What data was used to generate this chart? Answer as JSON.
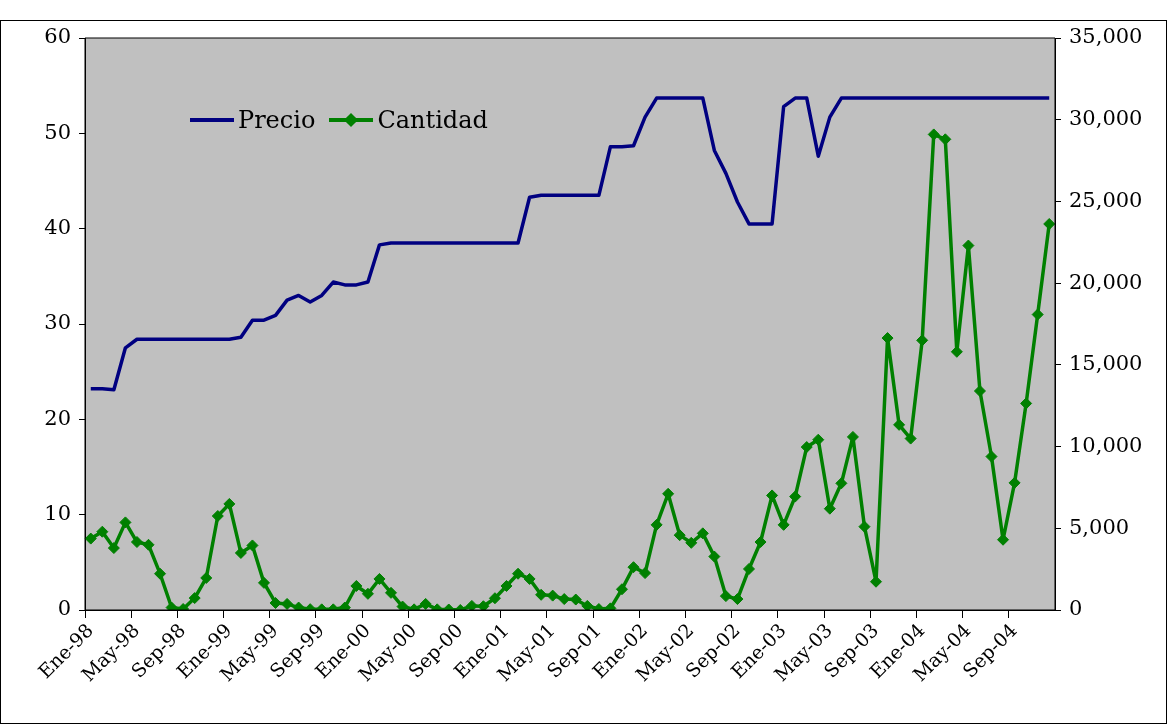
{
  "chart_data": {
    "type": "line",
    "categories": [
      "Ene-98",
      null,
      null,
      null,
      "May-98",
      null,
      null,
      null,
      "Sep-98",
      null,
      null,
      null,
      "Ene-99",
      null,
      null,
      null,
      "May-99",
      null,
      null,
      null,
      "Sep-99",
      null,
      null,
      null,
      "Ene-00",
      null,
      null,
      null,
      "May-00",
      null,
      null,
      null,
      "Sep-00",
      null,
      null,
      null,
      "Ene-01",
      null,
      null,
      null,
      "May-01",
      null,
      null,
      null,
      "Sep-01",
      null,
      null,
      null,
      "Ene-02",
      null,
      null,
      null,
      "May-02",
      null,
      null,
      null,
      "Sep-02",
      null,
      null,
      null,
      "Ene-03",
      null,
      null,
      null,
      "May-03",
      null,
      null,
      null,
      "Sep-03",
      null,
      null,
      null,
      "Ene-04",
      null,
      null,
      null,
      "May-04",
      null,
      null,
      null,
      "Sep-04",
      null,
      null,
      null
    ],
    "series": [
      {
        "name": "Precio",
        "color": "#000080",
        "marker": "none",
        "values": [
          23.2,
          23.2,
          23.1,
          27.5,
          28.4,
          28.4,
          28.4,
          28.4,
          28.4,
          28.4,
          28.4,
          28.4,
          28.4,
          28.6,
          30.4,
          30.4,
          30.9,
          32.5,
          33.0,
          32.3,
          33.0,
          34.4,
          34.1,
          34.1,
          34.4,
          38.3,
          38.5,
          38.5,
          38.5,
          38.5,
          38.5,
          38.5,
          38.5,
          38.5,
          38.5,
          38.5,
          38.5,
          38.5,
          43.3,
          43.5,
          43.5,
          43.5,
          43.5,
          43.5,
          43.5,
          48.6,
          48.6,
          48.7,
          51.7,
          53.7,
          53.7,
          53.7,
          53.7,
          53.7,
          48.2,
          45.8,
          42.8,
          40.5,
          40.5,
          40.5,
          52.8,
          53.7,
          53.7,
          47.6,
          51.7,
          53.7,
          53.7,
          53.7,
          53.7,
          53.7,
          53.7,
          53.7,
          53.7,
          53.7,
          53.7,
          53.7,
          53.7,
          53.7,
          53.7,
          53.7,
          53.7,
          53.7,
          53.7,
          53.7
        ]
      },
      {
        "name": "Cantidad",
        "color": "#008000",
        "marker": "diamond",
        "axis": "y2",
        "values": [
          4370,
          4790,
          3790,
          5360,
          4160,
          3990,
          2220,
          150,
          60,
          730,
          1960,
          5750,
          6490,
          3490,
          3950,
          1660,
          430,
          370,
          150,
          50,
          40,
          40,
          150,
          1470,
          990,
          1900,
          1050,
          210,
          40,
          370,
          40,
          30,
          0,
          250,
          230,
          720,
          1470,
          2220,
          1900,
          930,
          880,
          670,
          640,
          250,
          60,
          100,
          1270,
          2620,
          2260,
          5210,
          7110,
          4580,
          4110,
          4690,
          3270,
          850,
          670,
          2510,
          4160,
          7010,
          5210,
          6940,
          9970,
          10420,
          6200,
          7750,
          10590,
          5100,
          1730,
          16640,
          11330,
          10490,
          16500,
          29100,
          28800,
          15800,
          22300,
          13400,
          9390,
          4300,
          7780,
          12640,
          18080,
          23620
        ]
      }
    ],
    "ylim": [
      0,
      60
    ],
    "yticks": [
      0,
      10,
      20,
      30,
      40,
      50,
      60
    ],
    "y2lim": [
      0,
      35000
    ],
    "y2ticks": [
      0,
      {
        "value": 5000,
        "label": "5,000"
      },
      {
        "value": 10000,
        "label": "10,000"
      },
      {
        "value": 15000,
        "label": "15,000"
      },
      {
        "value": 20000,
        "label": "20,000"
      },
      {
        "value": 25000,
        "label": "25,000"
      },
      {
        "value": 30000,
        "label": "30,000"
      },
      {
        "value": 35000,
        "label": "35,000"
      }
    ],
    "grid": false,
    "legend": "top left",
    "line_style": "solid"
  }
}
